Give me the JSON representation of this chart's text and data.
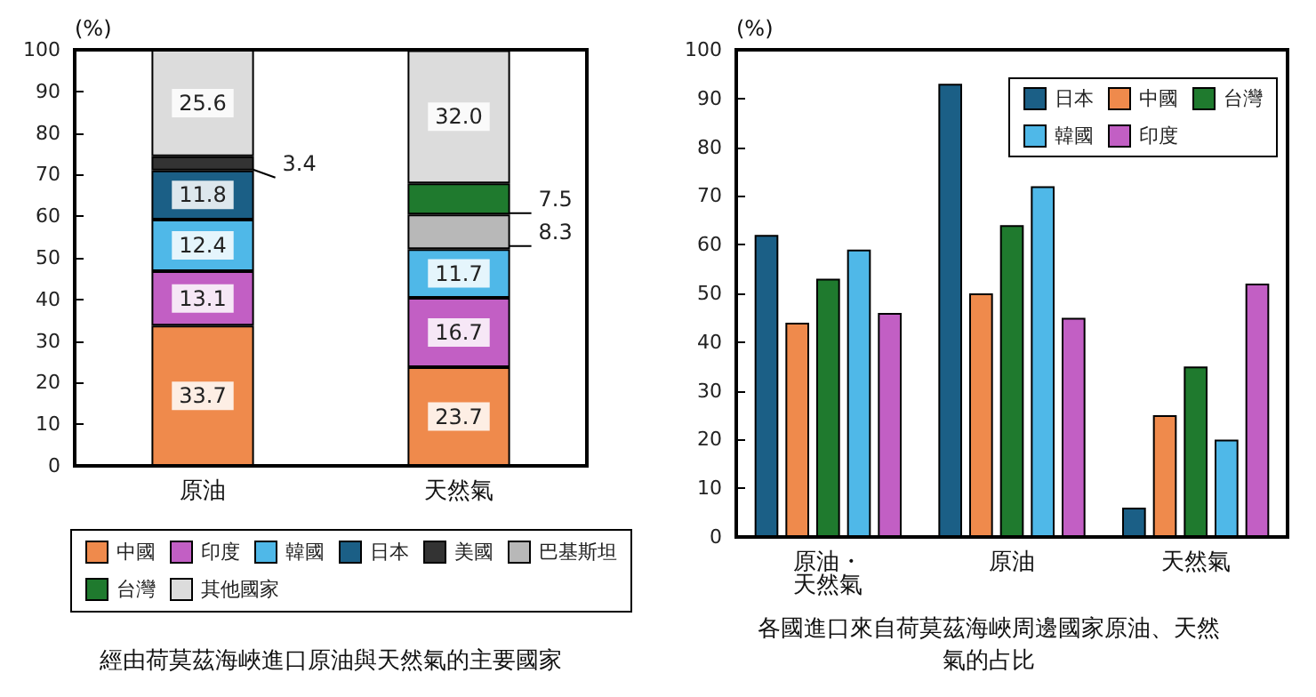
{
  "chart_data": [
    {
      "type": "bar",
      "title": "經由荷莫茲海峽進口原油與天然氣的主要國家",
      "ylabel": "(%)",
      "categories": [
        "原油",
        "天然氣"
      ],
      "stacked": true,
      "legend": "bottom",
      "ylim": [
        0,
        100
      ],
      "yticks": [
        0,
        10,
        20,
        30,
        40,
        50,
        60,
        70,
        80,
        90,
        100
      ],
      "series": [
        {
          "name": "中國",
          "color": "#ef8a4c",
          "values": [
            33.7,
            23.7
          ],
          "value_labels": [
            "33.7",
            "23.7"
          ]
        },
        {
          "name": "印度",
          "color": "#c25fc4",
          "values": [
            13.1,
            16.7
          ],
          "value_labels": [
            "13.1",
            "16.7"
          ]
        },
        {
          "name": "韓國",
          "color": "#4fb8e8",
          "values": [
            12.4,
            11.7
          ],
          "value_labels": [
            "12.4",
            "11.7"
          ]
        },
        {
          "name": "日本",
          "color": "#1b5f86",
          "values": [
            11.8,
            null
          ],
          "value_labels": [
            "11.8",
            null
          ]
        },
        {
          "name": "美國",
          "color": "#333333",
          "values": [
            3.4,
            null
          ],
          "value_labels": [
            "3.4",
            null
          ]
        },
        {
          "name": "巴基斯坦",
          "color": "#b8b8b8",
          "values": [
            null,
            8.3
          ],
          "value_labels": [
            null,
            "8.3"
          ]
        },
        {
          "name": "台灣",
          "color": "#1f7a2e",
          "values": [
            null,
            7.5
          ],
          "value_labels": [
            null,
            "7.5"
          ]
        },
        {
          "name": "其他國家",
          "color": "#dcdcdc",
          "values": [
            25.6,
            32.0
          ],
          "value_labels": [
            "25.6",
            "32.0"
          ]
        }
      ]
    },
    {
      "type": "bar",
      "title": "各國進口來自荷莫茲海峽周邊國家原油、天然氣的占比",
      "ylabel": "(%)",
      "categories": [
        "原油・天然氣",
        "原油",
        "天然氣"
      ],
      "legend": "top right",
      "ylim": [
        0,
        100
      ],
      "yticks": [
        0,
        10,
        20,
        30,
        40,
        50,
        60,
        70,
        80,
        90,
        100
      ],
      "series": [
        {
          "name": "日本",
          "color": "#1b5f86",
          "values": [
            62,
            93,
            6
          ]
        },
        {
          "name": "中國",
          "color": "#ef8a4c",
          "values": [
            44,
            50,
            25
          ]
        },
        {
          "name": "台灣",
          "color": "#1f7a2e",
          "values": [
            53,
            64,
            35
          ]
        },
        {
          "name": "韓國",
          "color": "#4fb8e8",
          "values": [
            59,
            72,
            20
          ]
        },
        {
          "name": "印度",
          "color": "#c25fc4",
          "values": [
            46,
            45,
            52
          ]
        }
      ]
    }
  ]
}
